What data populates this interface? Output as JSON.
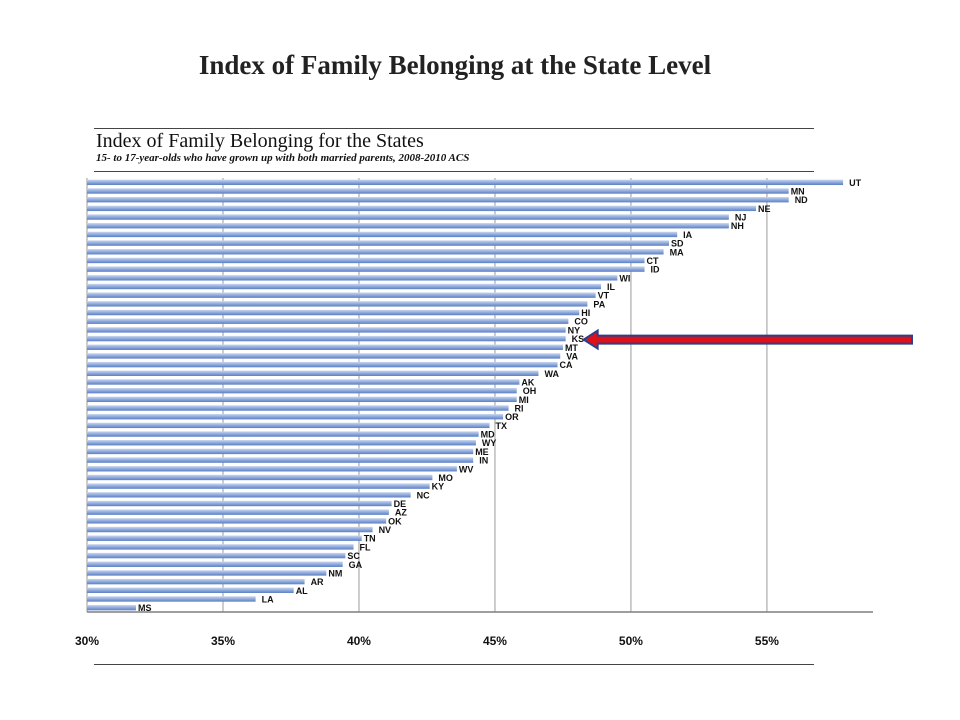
{
  "slide": {
    "title": "Index of Family Belonging at the State Level"
  },
  "chart_data": {
    "type": "bar",
    "orientation": "horizontal",
    "title": "Index of Family Belonging for the States",
    "subtitle": "15- to 17-year-olds who have grown up with both married parents, 2008-2010 ACS",
    "xlim": [
      30,
      58.9
    ],
    "x_ticks": [
      30,
      35,
      40,
      45,
      50,
      55
    ],
    "x_tick_labels": [
      "30%",
      "35%",
      "40%",
      "45%",
      "50%",
      "55%"
    ],
    "grid": true,
    "bar_color": "#8faadc",
    "highlight": {
      "category": "KS",
      "arrow_color": "#e01018"
    },
    "categories": [
      "UT",
      "MN",
      "ND",
      "NE",
      "NJ",
      "NH",
      "IA",
      "SD",
      "MA",
      "CT",
      "ID",
      "WI",
      "IL",
      "VT",
      "PA",
      "HI",
      "CO",
      "NY",
      "KS",
      "MT",
      "VA",
      "CA",
      "WA",
      "AK",
      "OH",
      "MI",
      "RI",
      "OR",
      "TX",
      "MD",
      "WY",
      "ME",
      "IN",
      "WV",
      "MO",
      "KY",
      "NC",
      "DE",
      "AZ",
      "OK",
      "NV",
      "TN",
      "FL",
      "SC",
      "GA",
      "NM",
      "AR",
      "AL",
      "LA",
      "MS"
    ],
    "values": [
      57.8,
      55.8,
      55.8,
      54.6,
      53.6,
      53.6,
      51.7,
      51.4,
      51.2,
      50.5,
      50.5,
      49.5,
      48.9,
      48.7,
      48.4,
      48.1,
      47.7,
      47.6,
      47.6,
      47.5,
      47.4,
      47.3,
      46.6,
      45.9,
      45.8,
      45.8,
      45.5,
      45.3,
      44.8,
      44.4,
      44.3,
      44.2,
      44.2,
      43.6,
      42.7,
      42.6,
      41.9,
      41.2,
      41.1,
      41.0,
      40.5,
      40.1,
      39.8,
      39.5,
      39.4,
      38.8,
      38.0,
      37.6,
      36.2,
      31.8
    ]
  }
}
